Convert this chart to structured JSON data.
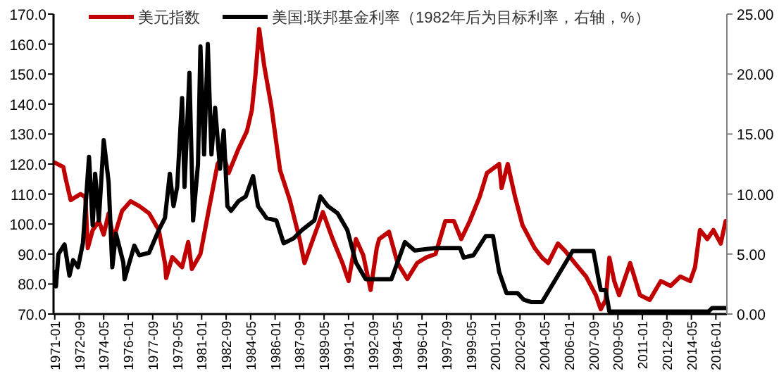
{
  "chart_data": {
    "type": "line",
    "legend": "top",
    "xlim": [
      "1970-12",
      "2016-10"
    ],
    "xticks": [
      "1971-01",
      "1972-09",
      "1974-05",
      "1976-01",
      "1977-09",
      "1979-05",
      "1981-01",
      "1982-09",
      "1984-05",
      "1986-01",
      "1987-09",
      "1989-05",
      "1991-01",
      "1992-09",
      "1994-05",
      "1996-01",
      "1997-09",
      "1999-05",
      "2001-01",
      "2002-09",
      "2004-05",
      "2006-01",
      "2007-09",
      "2009-05",
      "2011-01",
      "2012-09",
      "2014-05",
      "2016-01"
    ],
    "ylim": [
      70,
      170
    ],
    "yticks": [
      {
        "value": 70,
        "label": "70.0"
      },
      {
        "value": 80,
        "label": "80.0"
      },
      {
        "value": 90,
        "label": "90.0"
      },
      {
        "value": 100,
        "label": "100.0"
      },
      {
        "value": 110,
        "label": "110.0"
      },
      {
        "value": 120,
        "label": "120.0"
      },
      {
        "value": 130,
        "label": "130.0"
      },
      {
        "value": 140,
        "label": "140.0"
      },
      {
        "value": 150,
        "label": "150.0"
      },
      {
        "value": 160,
        "label": "160.0"
      },
      {
        "value": 170,
        "label": "170.0"
      }
    ],
    "y2lim": [
      0,
      25
    ],
    "y2ticks": [
      {
        "value": 0,
        "label": "0.00"
      },
      {
        "value": 5,
        "label": "5.00"
      },
      {
        "value": 10,
        "label": "10.00"
      },
      {
        "value": 15,
        "label": "15.00"
      },
      {
        "value": 20,
        "label": "20.00"
      },
      {
        "value": 25,
        "label": "25.00"
      }
    ],
    "series": [
      {
        "name": "美元指数",
        "color": "#c00000",
        "x": [
          "1971-01",
          "1971-08",
          "1971-10",
          "1972-02",
          "1972-10",
          "1973-02",
          "1973-04",
          "1973-08",
          "1974-01",
          "1974-05",
          "1974-09",
          "1975-01",
          "1975-08",
          "1976-03",
          "1976-10",
          "1977-06",
          "1978-02",
          "1978-07",
          "1978-08",
          "1979-01",
          "1979-09",
          "1980-02",
          "1980-05",
          "1980-12",
          "1981-06",
          "1982-02",
          "1982-07",
          "1982-11",
          "1983-07",
          "1984-02",
          "1984-06",
          "1984-09",
          "1984-12",
          "1985-04",
          "1985-10",
          "1986-05",
          "1987-01",
          "1987-09",
          "1988-01",
          "1988-08",
          "1989-04",
          "1989-12",
          "1990-08",
          "1991-01",
          "1991-07",
          "1992-01",
          "1992-07",
          "1992-12",
          "1993-02",
          "1993-10",
          "1994-05",
          "1995-01",
          "1995-09",
          "1996-04",
          "1996-12",
          "1997-08",
          "1998-03",
          "1998-09",
          "1999-04",
          "1999-12",
          "2000-06",
          "2000-11",
          "2001-04",
          "2001-06",
          "2001-11",
          "2002-05",
          "2002-11",
          "2003-09",
          "2004-03",
          "2004-08",
          "2005-04",
          "2005-10",
          "2006-07",
          "2007-03",
          "2007-11",
          "2008-03",
          "2008-07",
          "2008-10",
          "2009-02",
          "2009-06",
          "2010-03",
          "2010-11",
          "2011-07",
          "2012-04",
          "2012-12",
          "2013-08",
          "2014-04",
          "2014-08",
          "2014-12",
          "2015-06",
          "2015-11",
          "2016-05",
          "2016-09"
        ],
        "values": [
          120.5,
          119,
          115,
          108,
          110,
          109,
          92,
          98,
          101,
          96.5,
          103.5,
          95,
          104.4,
          107.6,
          106,
          103.6,
          98,
          87,
          82,
          89,
          85.6,
          94,
          85,
          90,
          103,
          120,
          123,
          117,
          125,
          131,
          138,
          150,
          165,
          153,
          139,
          118,
          108,
          95,
          87,
          95,
          104,
          95,
          87,
          81,
          95,
          89.6,
          78,
          92,
          95,
          97.4,
          87,
          81.7,
          87,
          88.8,
          90,
          101,
          101,
          95,
          101,
          109,
          117,
          118.5,
          120,
          112,
          120,
          109,
          99.7,
          92,
          88.8,
          87,
          93.5,
          91,
          86.4,
          82.5,
          76.3,
          71.6,
          74.7,
          88.8,
          81,
          76.3,
          87,
          76.3,
          74.7,
          81,
          79.4,
          82.5,
          81,
          85.6,
          98,
          95,
          98,
          93.5,
          101
        ]
      },
      {
        "name": "美国:联邦基金利率（1982年后为目标利率，右轴，%）",
        "color": "#000000",
        "axis": "y2",
        "x": [
          "1971-01",
          "1971-02",
          "1971-04",
          "1971-09",
          "1972-01",
          "1972-04",
          "1972-08",
          "1972-12",
          "1973-05",
          "1973-08",
          "1973-10",
          "1974-01",
          "1974-05",
          "1974-09",
          "1974-12",
          "1975-03",
          "1975-09",
          "1975-10",
          "1976-06",
          "1976-10",
          "1977-06",
          "1978-02",
          "1978-07",
          "1978-11",
          "1979-02",
          "1979-05",
          "1979-09",
          "1979-11",
          "1980-03",
          "1980-06",
          "1980-10",
          "1980-12",
          "1981-03",
          "1981-06",
          "1981-09",
          "1981-12",
          "1982-04",
          "1982-07",
          "1982-10",
          "1983-01",
          "1983-07",
          "1984-01",
          "1984-07",
          "1984-11",
          "1985-06",
          "1986-02",
          "1986-08",
          "1987-04",
          "1987-11",
          "1988-09",
          "1989-02",
          "1989-08",
          "1990-04",
          "1990-12",
          "1991-07",
          "1992-03",
          "1993-12",
          "1994-11",
          "1995-07",
          "1996-12",
          "1998-08",
          "1998-11",
          "1999-07",
          "2000-05",
          "2000-11",
          "2001-04",
          "2001-10",
          "2002-07",
          "2002-12",
          "2003-06",
          "2004-03",
          "2006-04",
          "2007-05",
          "2007-09",
          "2008-01",
          "2008-03",
          "2008-07",
          "2008-10",
          "2015-07",
          "2015-10",
          "2016-09"
        ],
        "values": [
          3.5,
          2.3,
          5.0,
          5.8,
          3.2,
          4.5,
          3.9,
          5.9,
          13.1,
          7.4,
          11.7,
          7.8,
          14.5,
          11,
          3.9,
          6.7,
          4.3,
          2.9,
          5.7,
          4.9,
          5.1,
          7.0,
          8.0,
          11.7,
          9.0,
          10.6,
          18.0,
          10.6,
          20.1,
          7.8,
          12.5,
          22.3,
          13.3,
          22.5,
          13.3,
          17.2,
          12.1,
          15.3,
          9.0,
          8.6,
          9.4,
          9.8,
          11.5,
          9.0,
          8.0,
          7.8,
          5.9,
          6.3,
          7.0,
          7.8,
          9.8,
          9.0,
          8.4,
          7.0,
          4.3,
          2.9,
          2.9,
          6.0,
          5.3,
          5.5,
          5.5,
          4.7,
          4.9,
          6.5,
          6.5,
          3.5,
          1.75,
          1.75,
          1.2,
          1.0,
          1.0,
          5.25,
          5.25,
          5.25,
          3.0,
          2.0,
          2.0,
          0.2,
          0.2,
          0.5,
          0.5
        ]
      }
    ]
  }
}
